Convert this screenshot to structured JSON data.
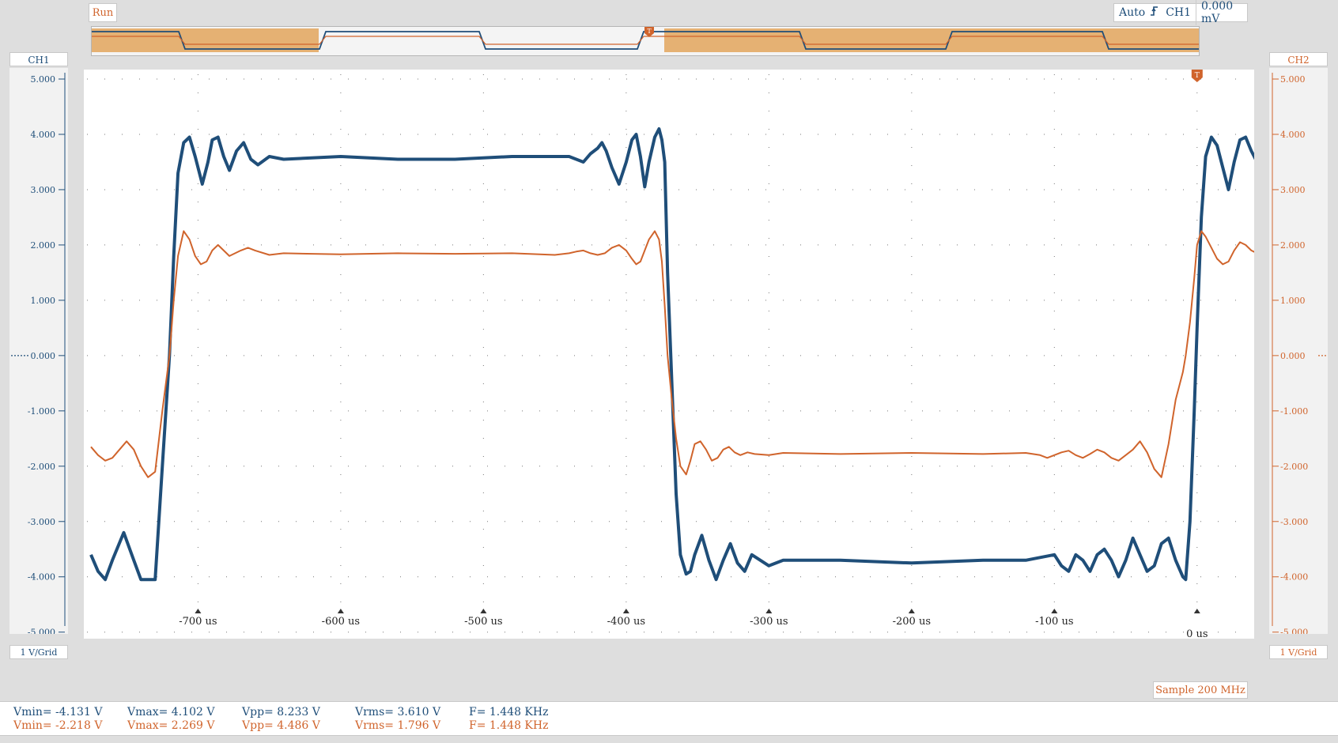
{
  "status": {
    "run_label": "Run"
  },
  "trigger": {
    "mode": "Auto",
    "source": "CH1",
    "level": "0.000 mV",
    "edge_icon": "rising-edge-icon",
    "marker": "T"
  },
  "channels": {
    "ch1": {
      "name": "CH1",
      "scale": "1 V/Grid",
      "color": "#1f4e79"
    },
    "ch2": {
      "name": "CH2",
      "scale": "1 V/Grid",
      "color": "#d0642c"
    }
  },
  "sample_rate": "Sample 200 MHz",
  "measurements": {
    "ch1": {
      "vmin": "Vmin= -4.131 V",
      "vmax": "Vmax= 4.102 V",
      "vpp": "Vpp= 8.233 V",
      "vrms": "Vrms= 3.610 V",
      "freq": "F= 1.448 KHz"
    },
    "ch2": {
      "vmin": "Vmin= -2.218 V",
      "vmax": "Vmax= 2.269 V",
      "vpp": "Vpp= 4.486 V",
      "vrms": "Vrms= 1.796 V",
      "freq": "F= 1.448 KHz"
    }
  },
  "chart_data": {
    "type": "line",
    "xlabel": "",
    "ylabel": "",
    "x_unit": "us",
    "xlim": [
      -780,
      40
    ],
    "ylim": [
      -5,
      5
    ],
    "y_ticks": [
      "5.000",
      "4.000",
      "3.000",
      "2.000",
      "1.000",
      "0.000",
      "-1.000",
      "-2.000",
      "-3.000",
      "-4.000",
      "-5.000"
    ],
    "x_ticks": [
      "-700 us",
      "-600 us",
      "-500 us",
      "-400 us",
      "-300 us",
      "-200 us",
      "-100 us",
      "0 us"
    ],
    "x_tick_values": [
      -700,
      -600,
      -500,
      -400,
      -300,
      -200,
      -100,
      0
    ],
    "grid": true,
    "series": [
      {
        "name": "CH1",
        "color": "#1f4e79",
        "x": [
          -775,
          -770,
          -765,
          -760,
          -752,
          -745,
          -740,
          -735,
          -730,
          -725,
          -720,
          -717,
          -714,
          -710,
          -706,
          -702,
          -697,
          -693,
          -690,
          -686,
          -682,
          -678,
          -673,
          -668,
          -663,
          -658,
          -650,
          -640,
          -600,
          -560,
          -520,
          -480,
          -440,
          -430,
          -425,
          -420,
          -417,
          -414,
          -410,
          -405,
          -400,
          -396,
          -393,
          -390,
          -387,
          -384,
          -380,
          -377,
          -375,
          -373,
          -371,
          -368,
          -365,
          -362,
          -358,
          -355,
          -352,
          -347,
          -342,
          -337,
          -332,
          -327,
          -322,
          -317,
          -312,
          -306,
          -300,
          -290,
          -250,
          -200,
          -150,
          -120,
          -100,
          -95,
          -90,
          -85,
          -80,
          -75,
          -70,
          -65,
          -60,
          -55,
          -50,
          -45,
          -40,
          -35,
          -30,
          -25,
          -20,
          -15,
          -10,
          -8,
          -5,
          -2,
          0,
          3,
          6,
          10,
          14,
          18,
          22,
          26,
          30,
          34,
          38,
          42,
          45
        ],
        "y": [
          -3.6,
          -3.9,
          -4.05,
          -3.7,
          -3.2,
          -3.7,
          -4.05,
          -4.05,
          -4.05,
          -2.0,
          0.0,
          1.8,
          3.3,
          3.85,
          3.95,
          3.6,
          3.1,
          3.5,
          3.9,
          3.95,
          3.6,
          3.35,
          3.7,
          3.85,
          3.55,
          3.45,
          3.6,
          3.55,
          3.6,
          3.55,
          3.55,
          3.6,
          3.6,
          3.5,
          3.65,
          3.75,
          3.85,
          3.7,
          3.4,
          3.1,
          3.5,
          3.9,
          4.0,
          3.6,
          3.05,
          3.5,
          3.95,
          4.1,
          3.9,
          3.5,
          1.5,
          -0.5,
          -2.5,
          -3.6,
          -3.95,
          -3.9,
          -3.6,
          -3.25,
          -3.7,
          -4.05,
          -3.7,
          -3.4,
          -3.75,
          -3.9,
          -3.6,
          -3.7,
          -3.8,
          -3.7,
          -3.7,
          -3.75,
          -3.7,
          -3.7,
          -3.6,
          -3.8,
          -3.9,
          -3.6,
          -3.7,
          -3.9,
          -3.6,
          -3.5,
          -3.7,
          -4.0,
          -3.7,
          -3.3,
          -3.6,
          -3.9,
          -3.8,
          -3.4,
          -3.3,
          -3.7,
          -4.0,
          -4.05,
          -3.0,
          -1.0,
          0.5,
          2.5,
          3.6,
          3.95,
          3.8,
          3.4,
          3.0,
          3.5,
          3.9,
          3.95,
          3.7,
          3.5,
          3.4
        ]
      },
      {
        "name": "CH2",
        "color": "#d0642c",
        "x": [
          -775,
          -770,
          -765,
          -760,
          -755,
          -750,
          -745,
          -740,
          -735,
          -730,
          -725,
          -720,
          -717,
          -714,
          -710,
          -706,
          -702,
          -698,
          -694,
          -690,
          -686,
          -682,
          -678,
          -674,
          -670,
          -665,
          -660,
          -650,
          -640,
          -600,
          -560,
          -520,
          -480,
          -450,
          -440,
          -435,
          -430,
          -425,
          -420,
          -415,
          -410,
          -405,
          -400,
          -396,
          -393,
          -390,
          -387,
          -384,
          -380,
          -377,
          -375,
          -373,
          -371,
          -368,
          -365,
          -362,
          -358,
          -355,
          -352,
          -348,
          -344,
          -340,
          -336,
          -332,
          -328,
          -324,
          -320,
          -315,
          -310,
          -300,
          -290,
          -250,
          -200,
          -150,
          -120,
          -110,
          -105,
          -100,
          -95,
          -90,
          -85,
          -80,
          -75,
          -70,
          -65,
          -60,
          -55,
          -50,
          -45,
          -40,
          -35,
          -30,
          -25,
          -20,
          -15,
          -10,
          -8,
          -5,
          -2,
          0,
          3,
          6,
          10,
          14,
          18,
          22,
          26,
          30,
          34,
          38,
          42,
          45
        ],
        "y": [
          -1.65,
          -1.8,
          -1.9,
          -1.85,
          -1.7,
          -1.55,
          -1.7,
          -2.0,
          -2.2,
          -2.1,
          -1.0,
          0.0,
          1.0,
          1.8,
          2.25,
          2.1,
          1.8,
          1.65,
          1.7,
          1.9,
          2.0,
          1.9,
          1.8,
          1.85,
          1.9,
          1.95,
          1.9,
          1.82,
          1.85,
          1.83,
          1.85,
          1.84,
          1.85,
          1.82,
          1.85,
          1.88,
          1.9,
          1.85,
          1.82,
          1.85,
          1.95,
          2.0,
          1.9,
          1.75,
          1.65,
          1.7,
          1.9,
          2.1,
          2.25,
          2.1,
          1.7,
          0.9,
          0.0,
          -0.8,
          -1.5,
          -2.0,
          -2.15,
          -1.9,
          -1.6,
          -1.55,
          -1.7,
          -1.9,
          -1.85,
          -1.7,
          -1.65,
          -1.75,
          -1.8,
          -1.75,
          -1.78,
          -1.8,
          -1.76,
          -1.78,
          -1.76,
          -1.78,
          -1.76,
          -1.8,
          -1.85,
          -1.8,
          -1.75,
          -1.72,
          -1.8,
          -1.85,
          -1.78,
          -1.7,
          -1.75,
          -1.85,
          -1.9,
          -1.8,
          -1.7,
          -1.55,
          -1.75,
          -2.05,
          -2.2,
          -1.6,
          -0.8,
          -0.3,
          0.0,
          0.6,
          1.4,
          2.0,
          2.25,
          2.15,
          1.95,
          1.75,
          1.65,
          1.7,
          1.9,
          2.05,
          2.0,
          1.9,
          1.85,
          1.8
        ]
      }
    ]
  }
}
